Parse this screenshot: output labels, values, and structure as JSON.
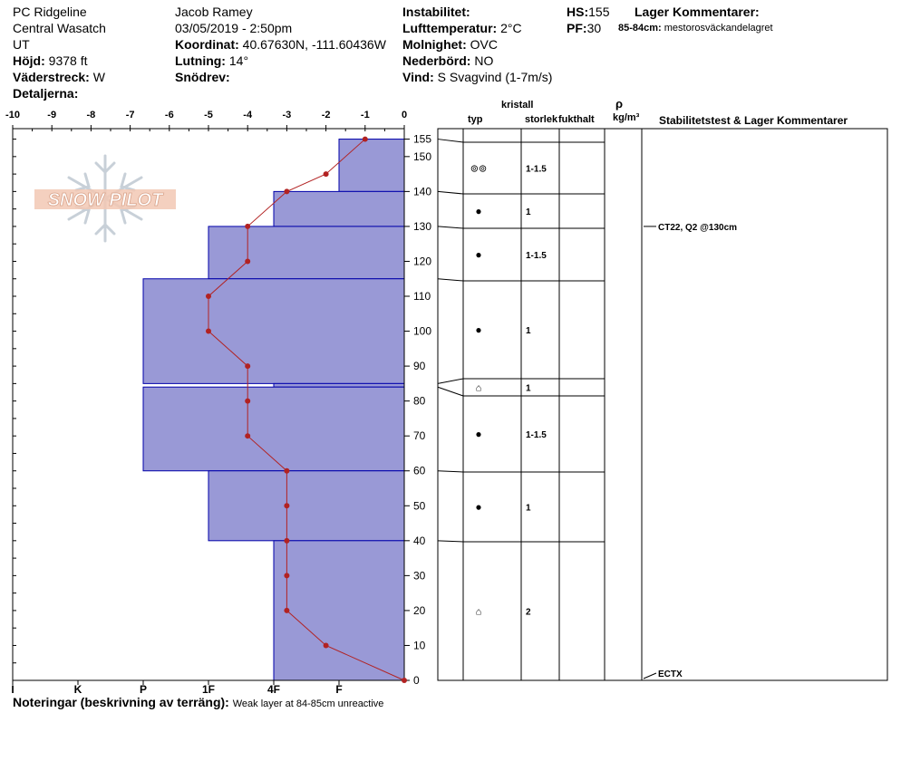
{
  "header": {
    "location": "PC Ridgeline",
    "range": "Central Wasatch",
    "state": "UT",
    "elevation_label": "Höjd:",
    "elevation_value": "9378 ft",
    "aspect_label": "Väderstreck:",
    "aspect_value": "W",
    "details_label": "Detaljerna:",
    "observer": "Jacob Ramey",
    "datetime": "03/05/2019 - 2:50pm",
    "coord_label": "Koordinat:",
    "coord_value": "40.67630N, -111.60436W",
    "slope_label": "Lutning:",
    "slope_value": "14°",
    "drift_label": "Snödrev:",
    "instability_label": "Instabilitet:",
    "airtemp_label": "Lufttemperatur:",
    "airtemp_value": "2°C",
    "cloud_label": "Molnighet:",
    "cloud_value": "OVC",
    "precip_label": "Nederbörd:",
    "precip_value": "NO",
    "wind_label": "Vind:",
    "wind_value": "S Svagvind (1-7m/s)",
    "hs_label": "HS:",
    "hs_value": "155",
    "pf_label": "PF:",
    "pf_value": "30",
    "layer_comments_label": "Lager Kommentarer:",
    "layer_comment_depth": "85-84cm:",
    "layer_comment_text": "mestorosväckandelagret"
  },
  "logo": {
    "text": "SNOW PILOT"
  },
  "columns": {
    "crystal": "kristall",
    "type": "typ",
    "size": "storlek",
    "moisture": "fukthalt",
    "rho": "ρ",
    "density_unit": "kg/m³",
    "stability": "Stabilitetstest & Lager Kommentarer"
  },
  "footer": {
    "notes_label": "Noteringar (beskrivning av terräng):",
    "notes_value": "Weak layer at 84-85cm unreactive"
  },
  "colors": {
    "hardness_fill": "#9999d6",
    "hardness_stroke": "#0000aa",
    "temp_line": "#b22222"
  },
  "chart_data": {
    "type": "snow-profile",
    "temperature_axis": {
      "ticks": [
        -10,
        -9,
        -8,
        -7,
        -6,
        -5,
        -4,
        -3,
        -2,
        -1,
        0
      ],
      "range": [
        -10,
        0
      ],
      "unit": "°C"
    },
    "depth_axis": {
      "ticks": [
        0,
        10,
        20,
        30,
        40,
        50,
        60,
        70,
        80,
        90,
        100,
        110,
        120,
        130,
        140,
        150,
        155
      ],
      "range": [
        0,
        155
      ],
      "unit": "cm"
    },
    "hardness_axis": {
      "labels": [
        "I",
        "K",
        "P",
        "1F",
        "4F",
        "F"
      ]
    },
    "temperature_profile": [
      {
        "depth": 155,
        "temp": -1
      },
      {
        "depth": 145,
        "temp": -2
      },
      {
        "depth": 140,
        "temp": -3
      },
      {
        "depth": 130,
        "temp": -4
      },
      {
        "depth": 120,
        "temp": -4
      },
      {
        "depth": 110,
        "temp": -5
      },
      {
        "depth": 100,
        "temp": -5
      },
      {
        "depth": 90,
        "temp": -4
      },
      {
        "depth": 80,
        "temp": -4
      },
      {
        "depth": 70,
        "temp": -4
      },
      {
        "depth": 60,
        "temp": -3
      },
      {
        "depth": 50,
        "temp": -3
      },
      {
        "depth": 40,
        "temp": -3
      },
      {
        "depth": 30,
        "temp": -3
      },
      {
        "depth": 20,
        "temp": -3
      },
      {
        "depth": 10,
        "temp": -2
      },
      {
        "depth": 0,
        "temp": 0
      }
    ],
    "layers": [
      {
        "top": 155,
        "bottom": 140,
        "hardness": "F",
        "crystal": "⊚⊚",
        "size": "1-1.5"
      },
      {
        "top": 140,
        "bottom": 130,
        "hardness": "4F",
        "crystal": "●",
        "size": "1"
      },
      {
        "top": 130,
        "bottom": 115,
        "hardness": "1F",
        "crystal": "●",
        "size": "1-1.5"
      },
      {
        "top": 115,
        "bottom": 85,
        "hardness": "P",
        "crystal": "●",
        "size": "1"
      },
      {
        "top": 85,
        "bottom": 84,
        "hardness": "4F",
        "crystal": "⌂",
        "size": "1"
      },
      {
        "top": 84,
        "bottom": 60,
        "hardness": "P",
        "crystal": "●",
        "size": "1-1.5"
      },
      {
        "top": 60,
        "bottom": 40,
        "hardness": "1F",
        "crystal": "●",
        "size": "1"
      },
      {
        "top": 40,
        "bottom": 0,
        "hardness": "4F",
        "crystal": "⌂",
        "size": "2"
      }
    ],
    "stability_tests": [
      {
        "depth": 130,
        "label": "CT22, Q2 @130cm"
      },
      {
        "depth": 0,
        "label": "ECTX"
      }
    ]
  }
}
